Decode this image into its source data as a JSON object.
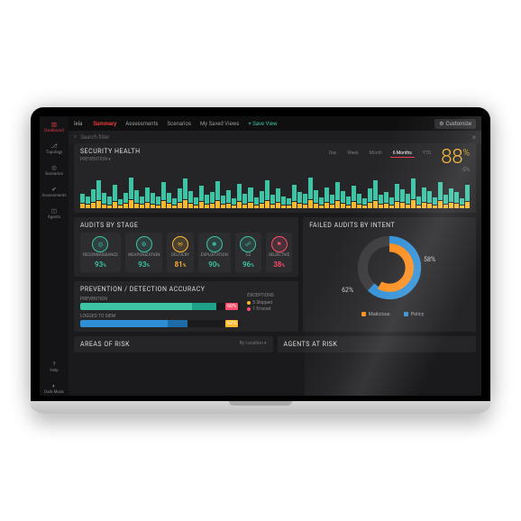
{
  "brand": "ixia",
  "topbar": {
    "tabs": [
      "Summary",
      "Assessments",
      "Scenarios",
      "My Saved Views"
    ],
    "active_index": 0,
    "save_view": "+ Save View",
    "customize": "Customize"
  },
  "search": {
    "placeholder": "Search filter"
  },
  "sidebar": {
    "items": [
      {
        "label": "Dashboard",
        "icon": "bars",
        "active": true
      },
      {
        "label": "Topology",
        "icon": "branch"
      },
      {
        "label": "Scenarios",
        "icon": "target"
      },
      {
        "label": "Assessments",
        "icon": "check"
      },
      {
        "label": "Agents",
        "icon": "cube"
      },
      {
        "label": "Help",
        "icon": "help"
      },
      {
        "label": "Dark Mode",
        "icon": "moon"
      }
    ]
  },
  "health": {
    "title": "Security Health",
    "sub_label": "Prevention",
    "ranges": [
      "Day",
      "Week",
      "Month",
      "6 Months",
      "YTD"
    ],
    "active_range_index": 3,
    "score": "88",
    "score_unit": "%",
    "score_delta": "-5%",
    "score_color": "#ffb92e",
    "bars": [
      [
        10,
        5
      ],
      [
        8,
        4
      ],
      [
        14,
        6
      ],
      [
        22,
        8
      ],
      [
        12,
        4
      ],
      [
        9,
        3
      ],
      [
        18,
        7
      ],
      [
        6,
        3
      ],
      [
        11,
        5
      ],
      [
        24,
        9
      ],
      [
        14,
        5
      ],
      [
        8,
        4
      ],
      [
        16,
        6
      ],
      [
        12,
        4
      ],
      [
        9,
        3
      ],
      [
        20,
        8
      ],
      [
        11,
        5
      ],
      [
        7,
        3
      ],
      [
        15,
        6
      ],
      [
        23,
        9
      ],
      [
        13,
        5
      ],
      [
        8,
        3
      ],
      [
        17,
        7
      ],
      [
        10,
        4
      ],
      [
        12,
        5
      ],
      [
        21,
        8
      ],
      [
        9,
        4
      ],
      [
        14,
        5
      ],
      [
        7,
        3
      ],
      [
        19,
        7
      ],
      [
        11,
        4
      ],
      [
        16,
        6
      ],
      [
        8,
        3
      ],
      [
        13,
        5
      ],
      [
        22,
        8
      ],
      [
        10,
        4
      ],
      [
        15,
        6
      ],
      [
        9,
        3
      ],
      [
        7,
        3
      ],
      [
        18,
        7
      ],
      [
        12,
        5
      ],
      [
        11,
        4
      ],
      [
        24,
        9
      ],
      [
        14,
        5
      ],
      [
        8,
        3
      ],
      [
        16,
        6
      ],
      [
        10,
        4
      ],
      [
        20,
        8
      ],
      [
        13,
        5
      ],
      [
        9,
        3
      ],
      [
        17,
        7
      ],
      [
        11,
        4
      ],
      [
        7,
        3
      ],
      [
        15,
        6
      ],
      [
        22,
        8
      ],
      [
        10,
        4
      ],
      [
        12,
        5
      ],
      [
        8,
        3
      ],
      [
        19,
        7
      ],
      [
        14,
        6
      ],
      [
        11,
        4
      ],
      [
        23,
        9
      ],
      [
        9,
        3
      ],
      [
        16,
        6
      ],
      [
        13,
        5
      ],
      [
        8,
        3
      ],
      [
        20,
        8
      ],
      [
        10,
        4
      ],
      [
        15,
        6
      ],
      [
        12,
        5
      ],
      [
        7,
        3
      ],
      [
        18,
        7
      ]
    ],
    "bar_color_top": "#3cc4a5",
    "bar_color_bot": "#ffb92e"
  },
  "stages": {
    "title": "Audits by Stage",
    "items": [
      {
        "label": "Reconnaissance",
        "pct": "93",
        "color": "#3cc4a5",
        "icon": "◎"
      },
      {
        "label": "Weaponization",
        "pct": "93",
        "color": "#3cc4a5",
        "icon": "⚙"
      },
      {
        "label": "Delivery",
        "pct": "81",
        "color": "#ffb92e",
        "icon": "✉"
      },
      {
        "label": "Exploitation",
        "pct": "90",
        "color": "#3cc4a5",
        "icon": "✱"
      },
      {
        "label": "C2",
        "pct": "96",
        "color": "#3cc4a5",
        "icon": "☍"
      },
      {
        "label": "Objective",
        "pct": "38",
        "color": "#ff4d6d",
        "icon": "⚑"
      }
    ]
  },
  "accuracy": {
    "title": "Prevention / Detection  Accuracy",
    "rows": [
      {
        "label": "Prevention",
        "segments": [
          {
            "w": 70,
            "c": "#3cc4a5"
          },
          {
            "w": 15,
            "c": "#1fa089"
          }
        ],
        "pct": "60%",
        "pct_color": "#ff4d6d"
      },
      {
        "label": "Logged to SIEM",
        "segments": [
          {
            "w": 55,
            "c": "#2e8ed6"
          },
          {
            "w": 12,
            "c": "#1d6ba7"
          }
        ],
        "pct": "62%",
        "pct_color": "#ffb92e"
      }
    ],
    "exceptions_title": "Exceptions",
    "exceptions": [
      {
        "label": "Skipped",
        "color": "#ffb92e",
        "count": "5"
      },
      {
        "label": "Errored",
        "color": "#ff4d6d",
        "count": "1"
      }
    ]
  },
  "failed": {
    "title": "Failed Audits by Intent",
    "malicious": {
      "pct": 58,
      "color": "#ff8c1a",
      "label": "58%"
    },
    "policy": {
      "pct": 62,
      "color": "#2e8ed6",
      "label": "62%"
    },
    "legend": [
      {
        "label": "Malicious",
        "color": "#ff8c1a"
      },
      {
        "label": "Policy",
        "color": "#2e8ed6"
      }
    ]
  },
  "bottom": {
    "areas_title": "Areas of Risk",
    "by_location": "By Location ▾",
    "agents_title": "Agents at Risk"
  }
}
